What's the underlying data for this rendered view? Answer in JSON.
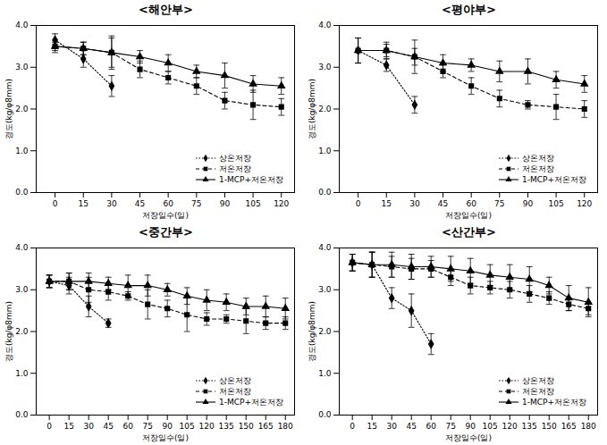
{
  "chart_data": [
    {
      "type": "line",
      "title": "<해안부>",
      "xlabel": "저장일수(일)",
      "ylabel": "경도(kg/φ8mm)",
      "x": [
        0,
        15,
        30,
        45,
        60,
        75,
        90,
        105,
        120
      ],
      "xlim": [
        -10,
        127
      ],
      "xticks": [
        0,
        15,
        30,
        45,
        60,
        75,
        90,
        105,
        120
      ],
      "ylim": [
        0,
        4
      ],
      "yticks": [
        {
          "value": 0,
          "label": "0.0"
        },
        {
          "value": 1,
          "label": "1.0"
        },
        {
          "value": 2,
          "label": "2.0"
        },
        {
          "value": 3,
          "label": "3.0"
        },
        {
          "value": 4,
          "label": "4.0"
        }
      ],
      "legend": "lower right",
      "series": [
        {
          "name": "상온저장",
          "color": "#000000",
          "marker": "diamond",
          "line_style": "dotted",
          "values": [
            3.65,
            3.2,
            2.55,
            null,
            null,
            null,
            null,
            null,
            null
          ],
          "errors": [
            0.15,
            0.2,
            0.25,
            null,
            null,
            null,
            null,
            null,
            null
          ]
        },
        {
          "name": "저온저장",
          "color": "#000000",
          "marker": "square",
          "line_style": "dashed",
          "values": [
            3.5,
            3.45,
            3.35,
            2.95,
            2.75,
            2.55,
            2.2,
            2.1,
            2.05
          ],
          "errors": [
            0.15,
            0.15,
            0.35,
            0.2,
            0.15,
            0.2,
            0.2,
            0.35,
            0.2
          ]
        },
        {
          "name": "1-MCP+저온저장",
          "color": "#000000",
          "marker": "triangle",
          "line_style": "solid",
          "values": [
            3.5,
            3.45,
            3.35,
            3.25,
            3.1,
            2.9,
            2.8,
            2.6,
            2.55
          ],
          "errors": [
            0.1,
            0.15,
            0.4,
            0.15,
            0.2,
            0.15,
            0.3,
            0.2,
            0.2
          ]
        }
      ]
    },
    {
      "type": "line",
      "title": "<평야부>",
      "xlabel": "저장일수(일)",
      "ylabel": "경도(kg/φ8mm)",
      "x": [
        0,
        15,
        30,
        45,
        60,
        75,
        90,
        105,
        120
      ],
      "xlim": [
        -10,
        127
      ],
      "xticks": [
        0,
        15,
        30,
        45,
        60,
        75,
        90,
        105,
        120
      ],
      "ylim": [
        0,
        4
      ],
      "yticks": [
        {
          "value": 0,
          "label": "0.0"
        },
        {
          "value": 1,
          "label": "1.0"
        },
        {
          "value": 2,
          "label": "2.0"
        },
        {
          "value": 3,
          "label": "3.0"
        },
        {
          "value": 4,
          "label": "4.0"
        }
      ],
      "legend": "lower right",
      "series": [
        {
          "name": "상온저장",
          "color": "#000000",
          "marker": "diamond",
          "line_style": "dotted",
          "values": [
            3.4,
            3.05,
            2.1,
            null,
            null,
            null,
            null,
            null,
            null
          ],
          "errors": [
            0.3,
            0.15,
            0.2,
            null,
            null,
            null,
            null,
            null,
            null
          ]
        },
        {
          "name": "저온저장",
          "color": "#000000",
          "marker": "square",
          "line_style": "dashed",
          "values": [
            3.4,
            3.4,
            3.25,
            2.9,
            2.55,
            2.25,
            2.1,
            2.05,
            2.0
          ],
          "errors": [
            0.3,
            0.15,
            0.2,
            0.15,
            0.2,
            0.2,
            0.1,
            0.3,
            0.2
          ]
        },
        {
          "name": "1-MCP+저온저장",
          "color": "#000000",
          "marker": "triangle",
          "line_style": "solid",
          "values": [
            3.4,
            3.4,
            3.25,
            3.1,
            3.05,
            2.9,
            2.9,
            2.7,
            2.6
          ],
          "errors": [
            0.3,
            0.2,
            0.4,
            0.2,
            0.15,
            0.25,
            0.3,
            0.2,
            0.2
          ]
        }
      ]
    },
    {
      "type": "line",
      "title": "<중간부>",
      "xlabel": "저장일수(일)",
      "ylabel": "경도(kg/φ8mm)",
      "x": [
        0,
        15,
        30,
        45,
        60,
        75,
        90,
        105,
        120,
        135,
        150,
        165,
        180
      ],
      "xlim": [
        -10,
        187
      ],
      "xticks": [
        0,
        15,
        30,
        45,
        60,
        75,
        90,
        105,
        120,
        135,
        150,
        165,
        180
      ],
      "ylim": [
        0,
        4
      ],
      "yticks": [
        {
          "value": 0,
          "label": "0.0"
        },
        {
          "value": 1,
          "label": "1.0"
        },
        {
          "value": 2,
          "label": "2.0"
        },
        {
          "value": 3,
          "label": "3.0"
        },
        {
          "value": 4,
          "label": "4.0"
        }
      ],
      "legend": "lower right",
      "series": [
        {
          "name": "상온저장",
          "color": "#000000",
          "marker": "diamond",
          "line_style": "dotted",
          "values": [
            3.2,
            3.1,
            2.6,
            2.2,
            null,
            null,
            null,
            null,
            null,
            null,
            null,
            null,
            null
          ],
          "errors": [
            0.15,
            0.2,
            0.25,
            0.1,
            null,
            null,
            null,
            null,
            null,
            null,
            null,
            null,
            null
          ]
        },
        {
          "name": "저온저장",
          "color": "#000000",
          "marker": "square",
          "line_style": "dashed",
          "values": [
            3.2,
            3.2,
            3.0,
            2.95,
            2.85,
            2.65,
            2.55,
            2.4,
            2.3,
            2.3,
            2.25,
            2.2,
            2.2
          ],
          "errors": [
            0.15,
            0.2,
            0.3,
            0.2,
            0.1,
            0.35,
            0.2,
            0.4,
            0.15,
            0.1,
            0.3,
            0.15,
            0.15
          ]
        },
        {
          "name": "1-MCP+저온저장",
          "color": "#000000",
          "marker": "triangle",
          "line_style": "solid",
          "values": [
            3.2,
            3.2,
            3.2,
            3.15,
            3.1,
            3.1,
            3.0,
            2.85,
            2.75,
            2.7,
            2.6,
            2.6,
            2.55
          ],
          "errors": [
            0.15,
            0.2,
            0.2,
            0.15,
            0.25,
            0.25,
            0.15,
            0.2,
            0.25,
            0.2,
            0.2,
            0.25,
            0.25
          ]
        }
      ]
    },
    {
      "type": "line",
      "title": "<산간부>",
      "xlabel": "저장일수(일)",
      "ylabel": "경도(kg/φ8mm)",
      "x": [
        0,
        15,
        30,
        45,
        60,
        75,
        90,
        105,
        120,
        135,
        150,
        165,
        180
      ],
      "xlim": [
        -10,
        187
      ],
      "xticks": [
        0,
        15,
        30,
        45,
        60,
        75,
        90,
        105,
        120,
        135,
        150,
        165,
        180
      ],
      "ylim": [
        0,
        4
      ],
      "yticks": [
        {
          "value": 0,
          "label": "0.0"
        },
        {
          "value": 1,
          "label": "1.0"
        },
        {
          "value": 2,
          "label": "2.0"
        },
        {
          "value": 3,
          "label": "3.0"
        },
        {
          "value": 4,
          "label": "4.0"
        }
      ],
      "legend": "lower right",
      "series": [
        {
          "name": "상온저장",
          "color": "#000000",
          "marker": "diamond",
          "line_style": "dotted",
          "values": [
            3.65,
            3.6,
            2.8,
            2.5,
            1.7,
            null,
            null,
            null,
            null,
            null,
            null,
            null,
            null
          ],
          "errors": [
            0.2,
            0.3,
            0.25,
            0.4,
            0.25,
            null,
            null,
            null,
            null,
            null,
            null,
            null,
            null
          ]
        },
        {
          "name": "저온저장",
          "color": "#000000",
          "marker": "square",
          "line_style": "dashed",
          "values": [
            3.65,
            3.6,
            3.55,
            3.5,
            3.5,
            3.3,
            3.1,
            3.05,
            3.0,
            2.9,
            2.8,
            2.65,
            2.55
          ],
          "errors": [
            0.2,
            0.3,
            0.25,
            0.25,
            0.2,
            0.2,
            0.2,
            0.15,
            0.2,
            0.2,
            0.15,
            0.15,
            0.15
          ]
        },
        {
          "name": "1-MCP+저온저장",
          "color": "#000000",
          "marker": "triangle",
          "line_style": "solid",
          "values": [
            3.65,
            3.6,
            3.6,
            3.55,
            3.55,
            3.5,
            3.45,
            3.35,
            3.3,
            3.25,
            3.1,
            2.8,
            2.7
          ],
          "errors": [
            0.2,
            0.3,
            0.3,
            0.3,
            0.25,
            0.3,
            0.3,
            0.25,
            0.3,
            0.3,
            0.2,
            0.3,
            0.35
          ]
        }
      ]
    }
  ]
}
